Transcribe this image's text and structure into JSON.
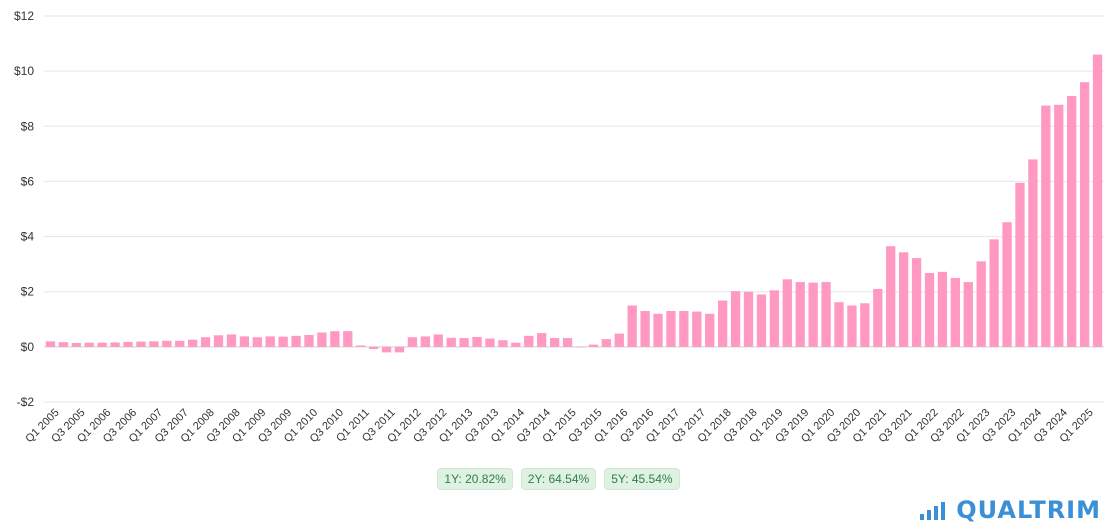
{
  "chart_data": {
    "type": "bar",
    "categories": [
      "Q1 2005",
      "Q2 2005",
      "Q3 2005",
      "Q4 2005",
      "Q1 2006",
      "Q2 2006",
      "Q3 2006",
      "Q4 2006",
      "Q1 2007",
      "Q2 2007",
      "Q3 2007",
      "Q4 2007",
      "Q1 2008",
      "Q2 2008",
      "Q3 2008",
      "Q4 2008",
      "Q1 2009",
      "Q2 2009",
      "Q3 2009",
      "Q4 2009",
      "Q1 2010",
      "Q2 2010",
      "Q3 2010",
      "Q4 2010",
      "Q1 2011",
      "Q2 2011",
      "Q3 2011",
      "Q4 2011",
      "Q1 2012",
      "Q2 2012",
      "Q3 2012",
      "Q4 2012",
      "Q1 2013",
      "Q2 2013",
      "Q3 2013",
      "Q4 2013",
      "Q1 2014",
      "Q2 2014",
      "Q3 2014",
      "Q4 2014",
      "Q1 2015",
      "Q2 2015",
      "Q3 2015",
      "Q4 2015",
      "Q1 2016",
      "Q2 2016",
      "Q3 2016",
      "Q4 2016",
      "Q1 2017",
      "Q2 2017",
      "Q3 2017",
      "Q4 2017",
      "Q1 2018",
      "Q2 2018",
      "Q3 2018",
      "Q4 2018",
      "Q1 2019",
      "Q2 2019",
      "Q3 2019",
      "Q4 2019",
      "Q1 2020",
      "Q2 2020",
      "Q3 2020",
      "Q4 2020",
      "Q1 2021",
      "Q2 2021",
      "Q3 2021",
      "Q4 2021",
      "Q1 2022",
      "Q2 2022",
      "Q3 2022",
      "Q4 2022",
      "Q1 2023",
      "Q2 2023",
      "Q3 2023",
      "Q4 2023",
      "Q1 2024",
      "Q2 2024",
      "Q3 2024",
      "Q4 2024",
      "Q1 2025",
      "Q2 2025"
    ],
    "values": [
      0.2,
      0.17,
      0.14,
      0.15,
      0.15,
      0.16,
      0.18,
      0.19,
      0.2,
      0.22,
      0.22,
      0.26,
      0.35,
      0.42,
      0.45,
      0.38,
      0.35,
      0.38,
      0.37,
      0.4,
      0.43,
      0.52,
      0.57,
      0.57,
      0.05,
      -0.08,
      -0.2,
      -0.2,
      0.35,
      0.38,
      0.45,
      0.33,
      0.32,
      0.36,
      0.3,
      0.24,
      0.15,
      0.4,
      0.5,
      0.32,
      0.32,
      0.0,
      0.08,
      0.28,
      0.48,
      1.5,
      1.3,
      1.2,
      1.3,
      1.3,
      1.28,
      1.2,
      1.68,
      2.02,
      2.0,
      1.9,
      2.05,
      2.45,
      2.35,
      2.33,
      2.35,
      1.62,
      1.5,
      1.58,
      2.1,
      3.65,
      3.43,
      3.22,
      2.68,
      2.72,
      2.5,
      2.35,
      3.1,
      3.9,
      4.52,
      5.95,
      6.8,
      8.75,
      8.78,
      9.1,
      9.6,
      10.6
    ],
    "ylim": [
      -2,
      12
    ],
    "yticks": [
      -2,
      0,
      2,
      4,
      6,
      8,
      10,
      12
    ],
    "ytick_labels": [
      "-$2",
      "$0",
      "$2",
      "$4",
      "$6",
      "$8",
      "$10",
      "$12"
    ],
    "xtick_labels": [
      "Q1 2005",
      "Q3 2005",
      "Q1 2006",
      "Q3 2006",
      "Q1 2007",
      "Q3 2007",
      "Q1 2008",
      "Q3 2008",
      "Q1 2009",
      "Q3 2009",
      "Q1 2010",
      "Q3 2010",
      "Q1 2011",
      "Q3 2011",
      "Q1 2012",
      "Q3 2012",
      "Q1 2013",
      "Q3 2013",
      "Q1 2014",
      "Q3 2014",
      "Q1 2015",
      "Q3 2015",
      "Q1 2016",
      "Q3 2016",
      "Q1 2017",
      "Q3 2017",
      "Q1 2018",
      "Q3 2018",
      "Q1 2019",
      "Q3 2019",
      "Q1 2020",
      "Q3 2020",
      "Q1 2021",
      "Q3 2021",
      "Q1 2022",
      "Q3 2022",
      "Q1 2023",
      "Q3 2023",
      "Q1 2024",
      "Q3 2024",
      "Q1 2025"
    ],
    "grid": true,
    "bar_color": "#ff99c2",
    "title": "",
    "xlabel": "",
    "ylabel": ""
  },
  "badges": {
    "one_year": "1Y: 20.82%",
    "two_year": "2Y: 64.54%",
    "five_year": "5Y: 45.54%"
  },
  "brand": {
    "name": "QUALTRIM",
    "color": "#3a8fd6",
    "icon": "bar-chart-icon"
  }
}
